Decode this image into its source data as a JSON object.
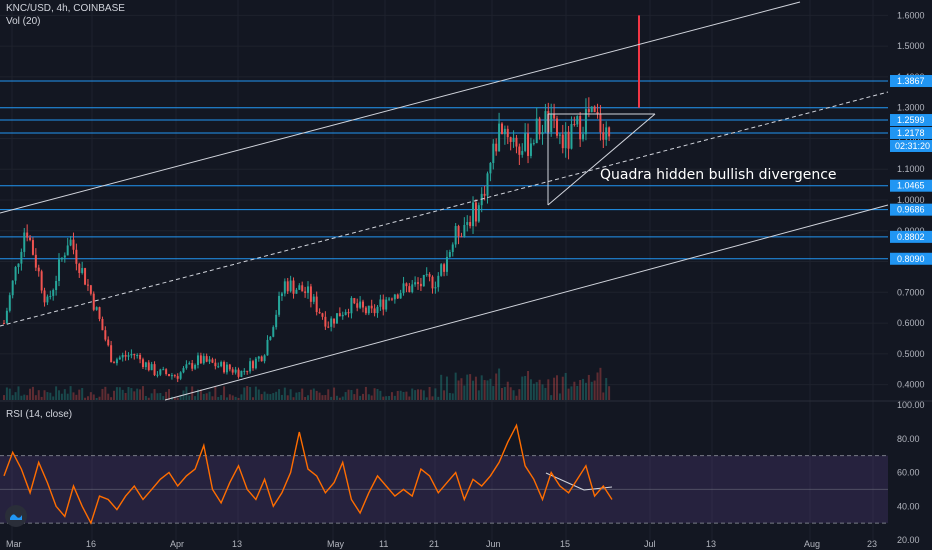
{
  "header": {
    "symbol_line": "KNC/USD, 4h, COINBASE",
    "volume_line": "Vol (20)"
  },
  "rsi_panel": {
    "title": "RSI (14, close)"
  },
  "annotation": {
    "text": "Quadra hidden bullish divergence"
  },
  "colors": {
    "background": "#131722",
    "grid": "#1e222d",
    "candle_up": "#26a69a",
    "candle_down": "#ef5350",
    "horizontal_levels": "#2196f3",
    "channel_lines": "#d1d4dc",
    "rsi_line": "#ff6d00",
    "rsi_band": "#7e57c2",
    "spike": "#f23645"
  },
  "chart_data": [
    {
      "type": "candlestick",
      "symbol": "KNC/USD",
      "interval": "4h",
      "exchange": "COINBASE",
      "y_axis_ticks": [
        "1.6000",
        "1.5000",
        "1.4000",
        "1.3000",
        "1.2000",
        "1.1000",
        "1.0000",
        "0.9000",
        "0.8000",
        "0.7000",
        "0.6000",
        "0.5000",
        "0.4000"
      ],
      "ylim": [
        0.35,
        1.65
      ],
      "x_axis_labels": [
        "Mar",
        "16",
        "Apr",
        "13",
        "May",
        "11",
        "21",
        "Jun",
        "15",
        "Jul",
        "13",
        "Aug",
        "23"
      ],
      "price_labels": [
        "1.3867",
        "1.2599",
        "1.2178",
        "1.0465",
        "0.9686",
        "0.8802",
        "0.8090"
      ],
      "countdown_label": "02:31:20",
      "horizontal_levels": [
        1.3867,
        1.3,
        1.2599,
        1.2178,
        1.0465,
        0.9686,
        0.8802,
        0.809
      ],
      "close_path": [
        {
          "x": "Mar 1",
          "y": 0.6
        },
        {
          "x": "Mar 3",
          "y": 0.92
        },
        {
          "x": "Mar 5",
          "y": 0.66
        },
        {
          "x": "Mar 8",
          "y": 0.88
        },
        {
          "x": "Mar 10",
          "y": 0.7
        },
        {
          "x": "Mar 12",
          "y": 0.48
        },
        {
          "x": "Mar 16",
          "y": 0.5
        },
        {
          "x": "Mar 22",
          "y": 0.44
        },
        {
          "x": "Apr 1",
          "y": 0.43
        },
        {
          "x": "Apr 7",
          "y": 0.48
        },
        {
          "x": "Apr 14",
          "y": 0.46
        },
        {
          "x": "Apr 20",
          "y": 0.44
        },
        {
          "x": "Apr 25",
          "y": 0.5
        },
        {
          "x": "Apr 28",
          "y": 0.73
        },
        {
          "x": "May 3",
          "y": 0.7
        },
        {
          "x": "May 8",
          "y": 0.6
        },
        {
          "x": "May 13",
          "y": 0.66
        },
        {
          "x": "May 20",
          "y": 0.63
        },
        {
          "x": "May 25",
          "y": 0.7
        },
        {
          "x": "May 30",
          "y": 0.72
        },
        {
          "x": "Jun 4",
          "y": 0.74
        },
        {
          "x": "Jun 7",
          "y": 0.9
        },
        {
          "x": "Jun 9",
          "y": 0.98
        },
        {
          "x": "Jun 10",
          "y": 1.25
        },
        {
          "x": "Jun 12",
          "y": 1.16
        },
        {
          "x": "Jun 14",
          "y": 1.26
        },
        {
          "x": "Jun 17",
          "y": 1.18
        },
        {
          "x": "Jun 20",
          "y": 1.28
        },
        {
          "x": "Jun 23",
          "y": 1.22
        }
      ]
    },
    {
      "type": "line",
      "name": "RSI (14, close)",
      "y_axis_ticks": [
        "100.00",
        "80.00",
        "60.00",
        "40.00",
        "20.00"
      ],
      "ylim": [
        20,
        100
      ],
      "bands": [
        30,
        70
      ],
      "values": [
        58,
        72,
        62,
        48,
        66,
        54,
        40,
        34,
        52,
        40,
        30,
        46,
        44,
        38,
        46,
        52,
        44,
        50,
        56,
        60,
        52,
        58,
        62,
        76,
        50,
        42,
        54,
        64,
        50,
        44,
        56,
        40,
        48,
        60,
        84,
        62,
        58,
        48,
        54,
        66,
        44,
        36,
        48,
        58,
        52,
        46,
        50,
        46,
        62,
        58,
        48,
        54,
        60,
        44,
        56,
        52,
        58,
        66,
        78,
        88,
        64,
        56,
        44,
        60,
        52,
        48,
        56,
        64,
        46,
        52,
        44
      ]
    }
  ]
}
